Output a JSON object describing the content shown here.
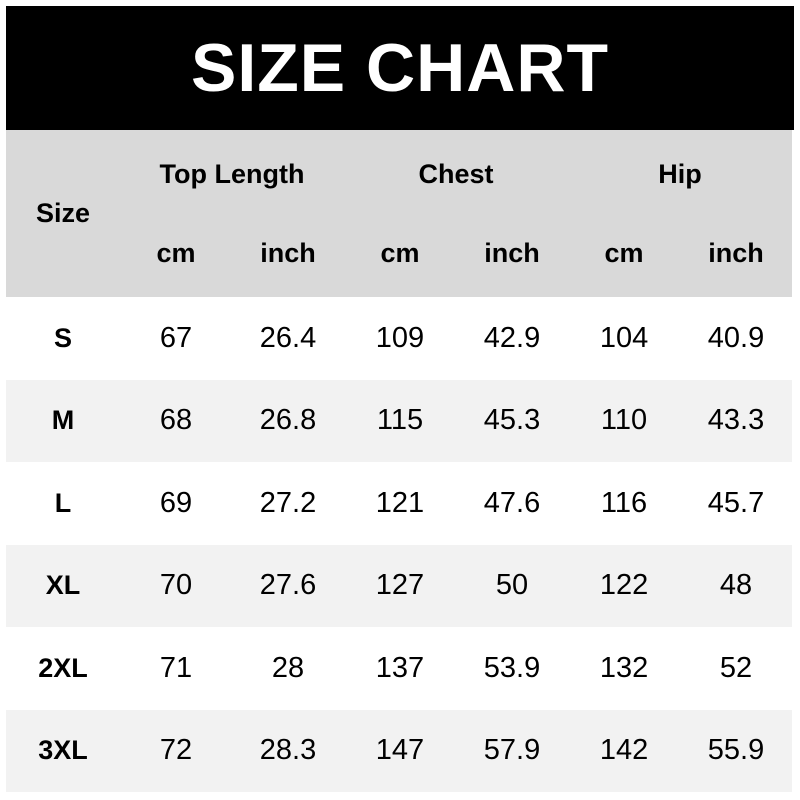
{
  "title": "SIZE CHART",
  "header": {
    "size_label": "Size",
    "groups": [
      "Top Length",
      "Chest",
      "Hip"
    ],
    "units": [
      "cm",
      "inch",
      "cm",
      "inch",
      "cm",
      "inch"
    ]
  },
  "rows": [
    {
      "size": "S",
      "values": [
        "67",
        "26.4",
        "109",
        "42.9",
        "104",
        "40.9"
      ]
    },
    {
      "size": "M",
      "values": [
        "68",
        "26.8",
        "115",
        "45.3",
        "110",
        "43.3"
      ]
    },
    {
      "size": "L",
      "values": [
        "69",
        "27.2",
        "121",
        "47.6",
        "116",
        "45.7"
      ]
    },
    {
      "size": "XL",
      "values": [
        "70",
        "27.6",
        "127",
        "50",
        "122",
        "48"
      ]
    },
    {
      "size": "2XL",
      "values": [
        "71",
        "28",
        "137",
        "53.9",
        "132",
        "52"
      ]
    },
    {
      "size": "3XL",
      "values": [
        "72",
        "28.3",
        "147",
        "57.9",
        "142",
        "55.9"
      ]
    }
  ],
  "colors": {
    "title_bg": "#000000",
    "header_bg": "#d9d9d9",
    "alt_row_bg": "#f2f2f2"
  }
}
